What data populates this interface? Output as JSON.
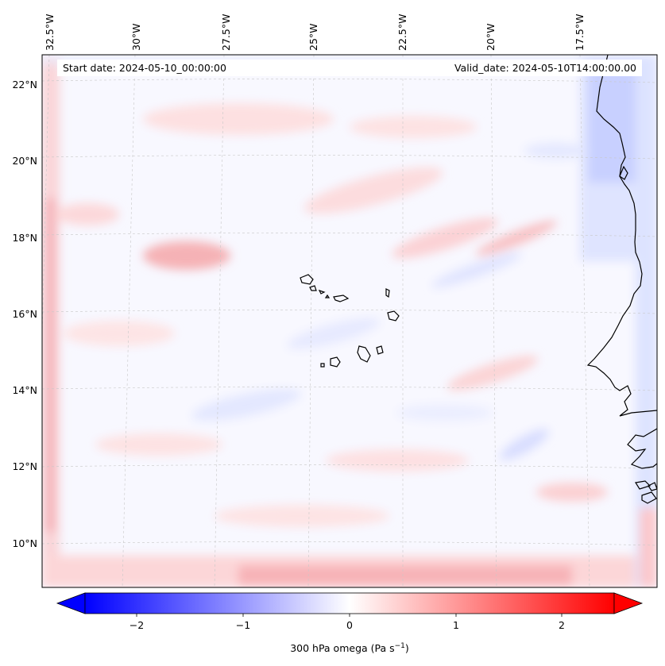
{
  "header": {
    "start_date": "Start date: 2024-05-10_00:00:00",
    "valid_date": "Valid_date: 2024-05-10T14:00:00.00"
  },
  "longitude_labels": [
    "32.5°W",
    "30°W",
    "27.5°W",
    "25°W",
    "22.5°W",
    "20°W",
    "17.5°W"
  ],
  "latitude_labels": [
    "22°N",
    "20°N",
    "18°N",
    "16°N",
    "14°N",
    "12°N",
    "10°N"
  ],
  "colorbar": {
    "label": "300 hPa omega (Pa s",
    "label_superscript": "−1",
    "label_close": ")",
    "ticks": [
      "−2",
      "−1",
      "0",
      "1",
      "2"
    ],
    "colormap": "bwr",
    "range": [
      -2.6,
      2.6
    ],
    "extend": "both"
  },
  "colors": {
    "negative": "#0000ff",
    "neutral": "#ffffff",
    "positive": "#ff0000",
    "coastline": "#000000",
    "gridline": "#bbbbbb"
  }
}
